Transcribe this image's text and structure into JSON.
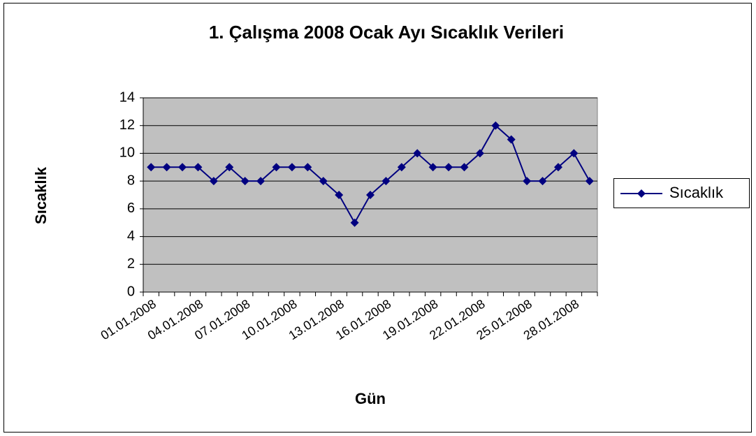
{
  "chart_data": {
    "type": "line",
    "title": "1. Çalışma 2008 Ocak Ayı Sıcaklık Verileri",
    "x_label": "Gün",
    "y_label": "Sıcaklık",
    "categories": [
      "01.01.2008",
      null,
      null,
      "04.01.2008",
      null,
      null,
      "07.01.2008",
      null,
      null,
      "10.01.2008",
      null,
      null,
      "13.01.2008",
      null,
      null,
      "16.01.2008",
      null,
      null,
      "19.01.2008",
      null,
      null,
      "22.01.2008",
      null,
      null,
      "25.01.2008",
      null,
      null,
      "28.01.2008",
      null
    ],
    "series": [
      {
        "name": "Sıcaklık",
        "color": "#000080",
        "values": [
          9,
          9,
          9,
          9,
          8,
          9,
          8,
          8,
          9,
          9,
          9,
          8,
          7,
          5,
          7,
          8,
          9,
          10,
          9,
          9,
          9,
          10,
          12,
          11,
          8,
          8,
          9,
          10,
          8
        ]
      }
    ],
    "ylim": [
      0,
      14
    ],
    "yticks": [
      0,
      2,
      4,
      6,
      8,
      10,
      12,
      14
    ],
    "grid": true,
    "legend": "right",
    "plot_background": "#c0c0c0"
  }
}
